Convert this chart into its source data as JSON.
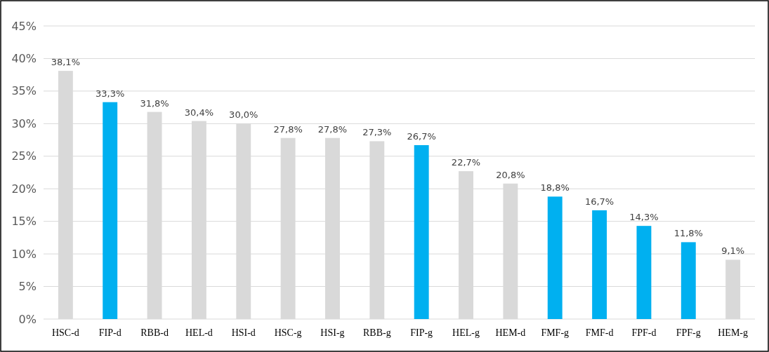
{
  "chart_data": {
    "type": "bar",
    "categories": [
      "HSC-d",
      "FIP-d",
      "RBB-d",
      "HEL-d",
      "HSI-d",
      "HSC-g",
      "HSI-g",
      "RBB-g",
      "FIP-g",
      "HEL-g",
      "HEM-d",
      "FMF-g",
      "FMF-d",
      "FPF-d",
      "FPF-g",
      "HEM-g"
    ],
    "values": [
      38.1,
      33.3,
      31.8,
      30.4,
      30.0,
      27.8,
      27.8,
      27.3,
      26.7,
      22.7,
      20.8,
      18.8,
      16.7,
      14.3,
      11.8,
      9.1
    ],
    "value_labels": [
      "38,1%",
      "33,3%",
      "31,8%",
      "30,4%",
      "30,0%",
      "27,8%",
      "27,8%",
      "27,3%",
      "26,7%",
      "22,7%",
      "20,8%",
      "18,8%",
      "16,7%",
      "14,3%",
      "11,8%",
      "9,1%"
    ],
    "colors": [
      "#d9d9d9",
      "#00b0f0",
      "#d9d9d9",
      "#d9d9d9",
      "#d9d9d9",
      "#d9d9d9",
      "#d9d9d9",
      "#d9d9d9",
      "#00b0f0",
      "#d9d9d9",
      "#d9d9d9",
      "#00b0f0",
      "#00b0f0",
      "#00b0f0",
      "#00b0f0",
      "#d9d9d9"
    ],
    "ylim": [
      0,
      45
    ],
    "yticks": [
      {
        "value": 0,
        "label": "0%"
      },
      {
        "value": 5,
        "label": "5%"
      },
      {
        "value": 10,
        "label": "10%"
      },
      {
        "value": 15,
        "label": "15%"
      },
      {
        "value": 20,
        "label": "20%"
      },
      {
        "value": 25,
        "label": "25%"
      },
      {
        "value": 30,
        "label": "30%"
      },
      {
        "value": 35,
        "label": "35%"
      },
      {
        "value": 40,
        "label": "40%"
      },
      {
        "value": 45,
        "label": "45%"
      }
    ],
    "grid": "y"
  }
}
